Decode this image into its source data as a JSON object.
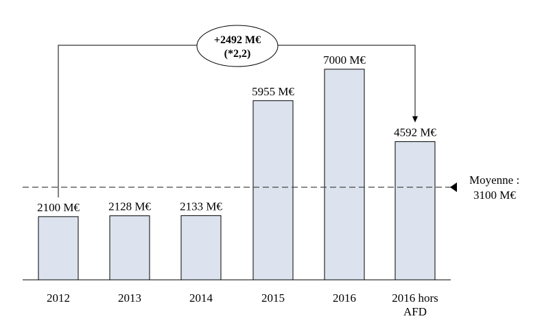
{
  "chart_data": {
    "type": "bar",
    "categories": [
      "2012",
      "2013",
      "2014",
      "2015",
      "2016",
      "2016 hors AFD"
    ],
    "values": [
      2100,
      2128,
      2133,
      5955,
      7000,
      4592
    ],
    "value_labels": [
      "2100 M€",
      "2128 M€",
      "2133 M€",
      "5955 M€",
      "7000 M€",
      "4592 M€"
    ],
    "title": "",
    "xlabel": "",
    "ylabel": "",
    "ylim": [
      0,
      8000
    ],
    "grid": false,
    "bar_color": "#dce3ee",
    "average": {
      "value": 3100,
      "label_line1": "Moyenne :",
      "label_line2": "3100 M€"
    },
    "annotation": {
      "from": "2012",
      "to": "2016 hors AFD",
      "line1": "+2492 M€",
      "line2": "(*2,2)"
    }
  }
}
